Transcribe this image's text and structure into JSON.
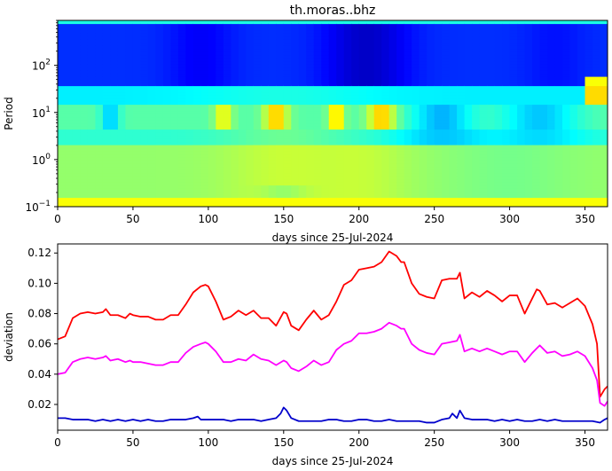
{
  "colors": {
    "red": "#ff0000",
    "magenta": "#ff00ff",
    "blue": "#0000cc"
  },
  "chart_data": [
    {
      "type": "heatmap",
      "title": "th.moras..bhz",
      "xlabel": "days since 25-Jul-2024",
      "ylabel": "Period",
      "xlim": [
        0,
        365
      ],
      "ylim": [
        0.1,
        900
      ],
      "yscale": "log",
      "xticks": [
        "0",
        "50",
        "100",
        "150",
        "200",
        "250",
        "300",
        "350"
      ],
      "yticks": [
        {
          "value": 0.1,
          "base": "10",
          "exp": "−1"
        },
        {
          "value": 1,
          "base": "10",
          "exp": "0"
        },
        {
          "value": 10,
          "base": "10",
          "exp": "1"
        },
        {
          "value": 100,
          "base": "10",
          "exp": "2"
        }
      ],
      "colormap": "jet"
    },
    {
      "type": "line",
      "title": "",
      "xlabel": "days since 25-Jul-2024",
      "ylabel": "deviation",
      "xlim": [
        0,
        365
      ],
      "ylim": [
        0.003,
        0.126
      ],
      "xticks": [
        "0",
        "50",
        "100",
        "150",
        "200",
        "250",
        "300",
        "350"
      ],
      "yticks": [
        "0.02",
        "0.04",
        "0.06",
        "0.08",
        "0.10",
        "0.12"
      ],
      "grid": false,
      "series": [
        {
          "color": "#ff0000",
          "x": [
            0,
            5,
            10,
            15,
            20,
            25,
            30,
            32,
            35,
            40,
            45,
            48,
            50,
            55,
            60,
            65,
            70,
            75,
            80,
            85,
            90,
            95,
            98,
            100,
            105,
            110,
            115,
            120,
            125,
            130,
            135,
            140,
            145,
            150,
            152,
            155,
            160,
            165,
            170,
            175,
            180,
            185,
            190,
            195,
            200,
            205,
            210,
            215,
            220,
            225,
            228,
            230,
            235,
            240,
            245,
            250,
            255,
            260,
            265,
            267,
            270,
            275,
            280,
            285,
            290,
            295,
            300,
            305,
            310,
            315,
            318,
            320,
            325,
            330,
            335,
            340,
            345,
            350,
            355,
            358,
            360,
            363,
            365
          ],
          "y": [
            0.063,
            0.065,
            0.077,
            0.08,
            0.081,
            0.08,
            0.081,
            0.083,
            0.079,
            0.079,
            0.077,
            0.08,
            0.079,
            0.078,
            0.078,
            0.076,
            0.076,
            0.079,
            0.079,
            0.086,
            0.094,
            0.098,
            0.099,
            0.098,
            0.088,
            0.076,
            0.078,
            0.082,
            0.079,
            0.082,
            0.077,
            0.077,
            0.072,
            0.081,
            0.08,
            0.072,
            0.069,
            0.076,
            0.082,
            0.076,
            0.079,
            0.088,
            0.099,
            0.102,
            0.109,
            0.11,
            0.111,
            0.114,
            0.121,
            0.118,
            0.114,
            0.114,
            0.1,
            0.093,
            0.091,
            0.09,
            0.102,
            0.103,
            0.103,
            0.107,
            0.09,
            0.094,
            0.091,
            0.095,
            0.092,
            0.088,
            0.092,
            0.092,
            0.08,
            0.09,
            0.096,
            0.095,
            0.086,
            0.087,
            0.084,
            0.087,
            0.09,
            0.085,
            0.073,
            0.06,
            0.025,
            0.03,
            0.032
          ]
        },
        {
          "color": "#ff00ff",
          "x": [
            0,
            5,
            10,
            15,
            20,
            25,
            30,
            32,
            35,
            40,
            45,
            48,
            50,
            55,
            60,
            65,
            70,
            75,
            80,
            85,
            90,
            95,
            98,
            100,
            105,
            110,
            115,
            120,
            125,
            130,
            135,
            140,
            145,
            150,
            152,
            155,
            160,
            165,
            170,
            175,
            180,
            185,
            190,
            195,
            200,
            205,
            210,
            215,
            220,
            225,
            228,
            230,
            235,
            240,
            245,
            250,
            255,
            260,
            265,
            267,
            270,
            275,
            280,
            285,
            290,
            295,
            300,
            305,
            310,
            315,
            318,
            320,
            325,
            330,
            335,
            340,
            345,
            350,
            355,
            358,
            360,
            363,
            365
          ],
          "y": [
            0.04,
            0.041,
            0.048,
            0.05,
            0.051,
            0.05,
            0.051,
            0.052,
            0.049,
            0.05,
            0.048,
            0.049,
            0.048,
            0.048,
            0.047,
            0.046,
            0.046,
            0.048,
            0.048,
            0.054,
            0.058,
            0.06,
            0.061,
            0.06,
            0.055,
            0.048,
            0.048,
            0.05,
            0.049,
            0.053,
            0.05,
            0.049,
            0.046,
            0.049,
            0.048,
            0.044,
            0.042,
            0.045,
            0.049,
            0.046,
            0.048,
            0.056,
            0.06,
            0.062,
            0.067,
            0.067,
            0.068,
            0.07,
            0.074,
            0.072,
            0.07,
            0.07,
            0.06,
            0.056,
            0.054,
            0.053,
            0.06,
            0.061,
            0.062,
            0.066,
            0.055,
            0.057,
            0.055,
            0.057,
            0.055,
            0.053,
            0.055,
            0.055,
            0.048,
            0.054,
            0.057,
            0.059,
            0.054,
            0.055,
            0.052,
            0.053,
            0.055,
            0.052,
            0.044,
            0.036,
            0.021,
            0.019,
            0.022
          ]
        },
        {
          "color": "#0000cc",
          "x": [
            0,
            5,
            10,
            15,
            20,
            25,
            30,
            35,
            40,
            45,
            50,
            55,
            60,
            65,
            70,
            75,
            80,
            85,
            90,
            93,
            95,
            100,
            105,
            110,
            115,
            120,
            125,
            130,
            135,
            140,
            145,
            148,
            150,
            152,
            155,
            160,
            165,
            170,
            175,
            180,
            185,
            190,
            195,
            200,
            205,
            210,
            215,
            220,
            225,
            230,
            235,
            240,
            245,
            250,
            255,
            260,
            262,
            265,
            267,
            270,
            275,
            280,
            285,
            290,
            295,
            300,
            305,
            310,
            315,
            320,
            325,
            330,
            335,
            340,
            345,
            350,
            355,
            360,
            363,
            365
          ],
          "y": [
            0.011,
            0.011,
            0.01,
            0.01,
            0.01,
            0.009,
            0.01,
            0.009,
            0.01,
            0.009,
            0.01,
            0.009,
            0.01,
            0.009,
            0.009,
            0.01,
            0.01,
            0.01,
            0.011,
            0.012,
            0.01,
            0.01,
            0.01,
            0.01,
            0.009,
            0.01,
            0.01,
            0.01,
            0.009,
            0.01,
            0.011,
            0.014,
            0.018,
            0.016,
            0.011,
            0.009,
            0.009,
            0.009,
            0.009,
            0.01,
            0.01,
            0.009,
            0.009,
            0.01,
            0.01,
            0.009,
            0.009,
            0.01,
            0.009,
            0.009,
            0.009,
            0.009,
            0.008,
            0.008,
            0.01,
            0.011,
            0.014,
            0.011,
            0.016,
            0.011,
            0.01,
            0.01,
            0.01,
            0.009,
            0.01,
            0.009,
            0.01,
            0.009,
            0.009,
            0.01,
            0.009,
            0.01,
            0.009,
            0.009,
            0.009,
            0.009,
            0.009,
            0.008,
            0.01,
            0.011
          ]
        }
      ]
    }
  ]
}
